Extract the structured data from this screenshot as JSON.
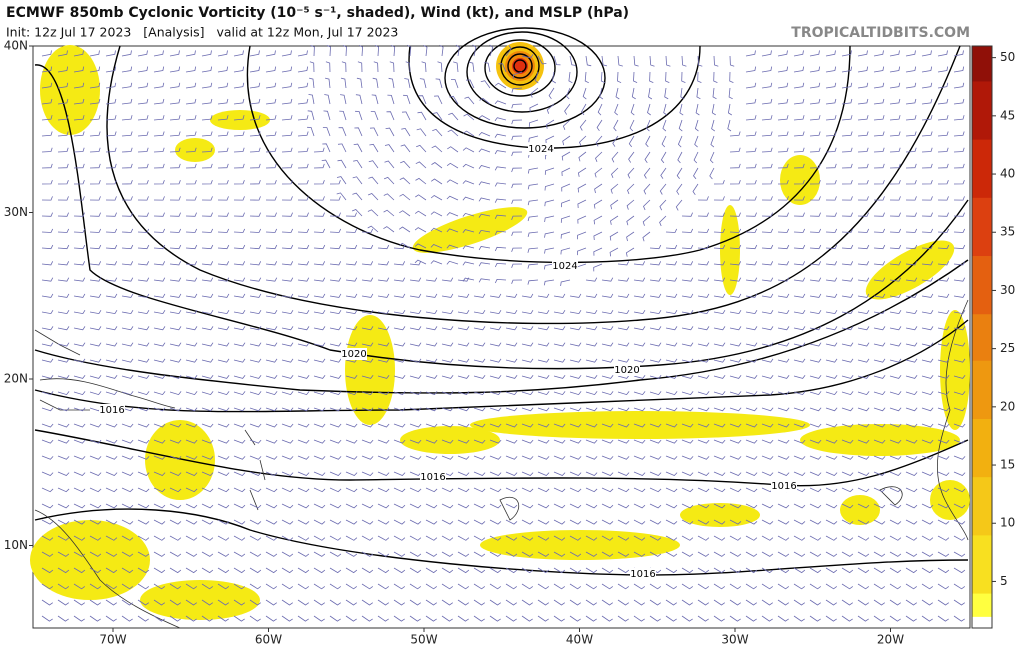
{
  "header": {
    "title": "ECMWF 850mb Cyclonic Vorticity (10⁻⁵ s⁻¹, shaded), Wind (kt), and MSLP (hPa)",
    "subtitle": "Init: 12z Jul 17 2023   [Analysis]   valid at 12z Mon, Jul 17 2023",
    "site": "TROPICALTIDBITS.COM"
  },
  "map": {
    "lat_ticks": [
      {
        "value": 40,
        "label": "40N"
      },
      {
        "value": 30,
        "label": "30N"
      },
      {
        "value": 20,
        "label": "20N"
      },
      {
        "value": 10,
        "label": "10N"
      }
    ],
    "lon_ticks": [
      {
        "value": -70,
        "label": "70W"
      },
      {
        "value": -60,
        "label": "60W"
      },
      {
        "value": -50,
        "label": "50W"
      },
      {
        "value": -40,
        "label": "40W"
      },
      {
        "value": -30,
        "label": "30W"
      },
      {
        "value": -20,
        "label": "20W"
      }
    ],
    "isobar_labels": [
      1024,
      1024,
      1020,
      1020,
      1016,
      1016,
      1016,
      1016
    ]
  },
  "colorbar": {
    "range": [
      1,
      51
    ],
    "ticks": [
      5,
      10,
      15,
      20,
      25,
      30,
      35,
      40,
      45,
      50
    ]
  }
}
